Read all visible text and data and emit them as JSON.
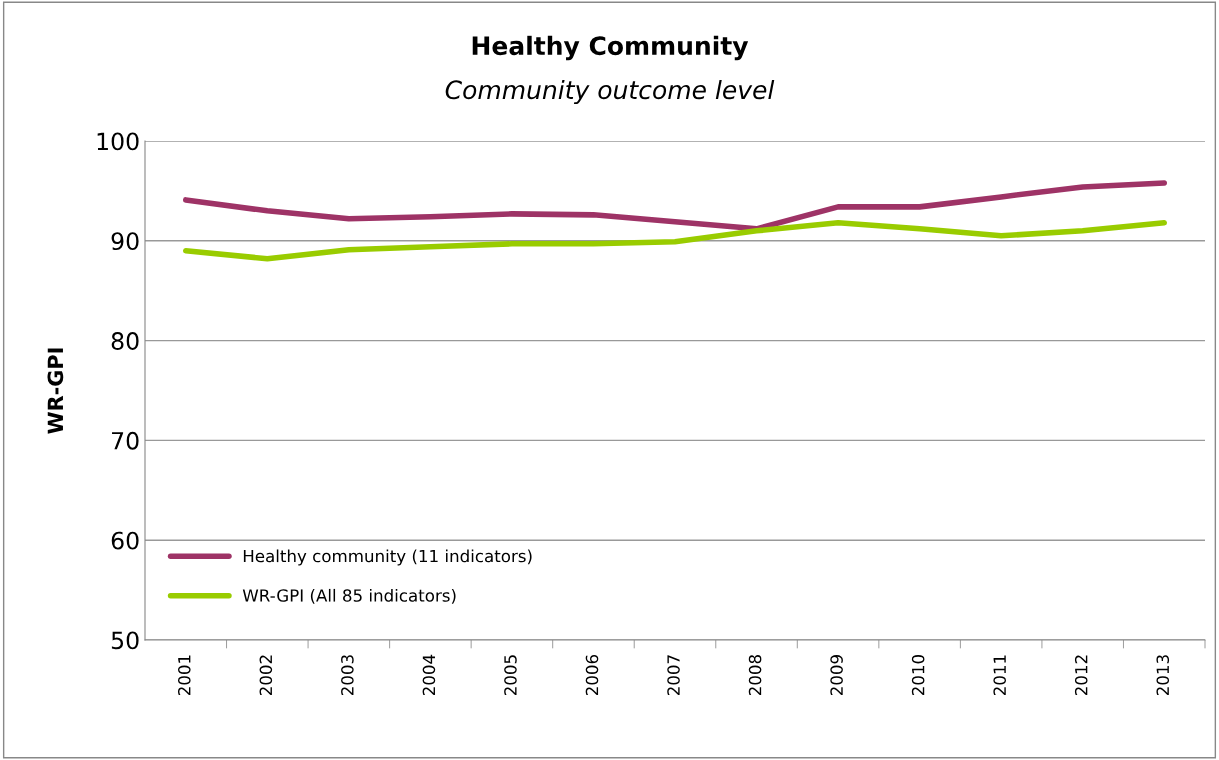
{
  "chart_data": {
    "type": "line",
    "title": "Healthy Community",
    "subtitle": "Community outcome level",
    "ylabel": "WR-GPI",
    "categories": [
      "2001",
      "2002",
      "2003",
      "2004",
      "2005",
      "2006",
      "2007",
      "2008",
      "2009",
      "2010",
      "2011",
      "2012",
      "2013"
    ],
    "series": [
      {
        "name": "Healthy community (11 indicators)",
        "color": "#9e3366",
        "values": [
          94.1,
          93.0,
          92.2,
          92.4,
          92.7,
          92.6,
          91.9,
          91.2,
          93.4,
          93.4,
          94.4,
          95.4,
          95.8
        ]
      },
      {
        "name": "WR-GPI (All 85 indicators)",
        "color": "#99cc00",
        "values": [
          89.0,
          88.2,
          89.1,
          89.4,
          89.7,
          89.7,
          89.9,
          91.0,
          91.8,
          91.2,
          90.5,
          91.0,
          91.8
        ]
      }
    ],
    "ylim": [
      50,
      100
    ],
    "yticks": [
      50,
      60,
      70,
      80,
      90,
      100
    ],
    "grid": "y",
    "legend": "bottom left",
    "marker": "none",
    "line_style": "solid"
  }
}
